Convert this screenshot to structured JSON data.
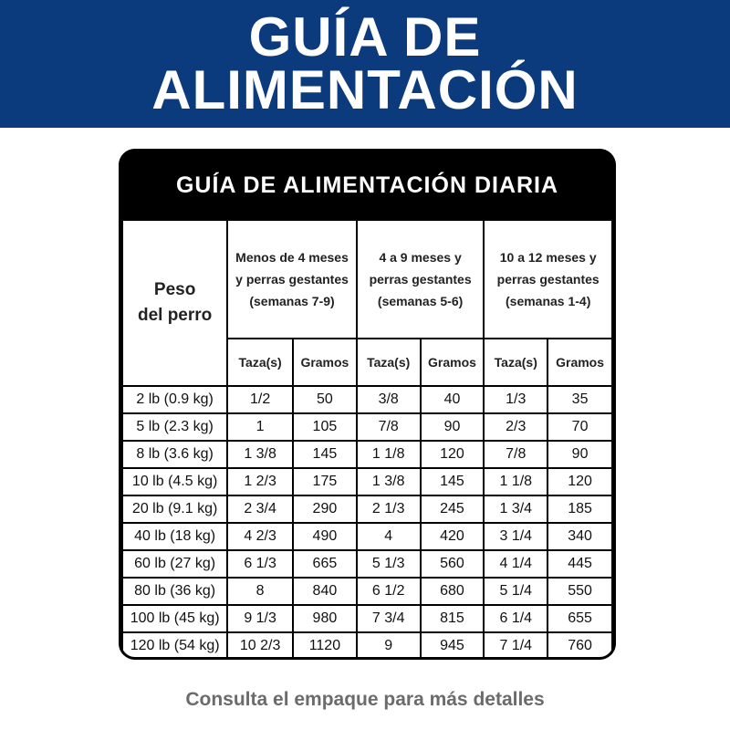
{
  "banner": {
    "line1": "GUÍA DE",
    "line2": "ALIMENTACIÓN",
    "color": "#0c3b7d"
  },
  "table": {
    "title": "GUÍA DE ALIMENTACIÓN DIARIA",
    "weight_header": {
      "line1": "Peso",
      "line2": "del perro"
    },
    "groups": [
      {
        "line1": "Menos de 4 meses",
        "line2": "y perras gestantes",
        "line3": "(semanas 7-9)"
      },
      {
        "line1": "4 a 9 meses y",
        "line2": "perras gestantes",
        "line3": "(semanas 5-6)"
      },
      {
        "line1": "10 a 12 meses y",
        "line2": "perras gestantes",
        "line3": "(semanas 1-4)"
      }
    ],
    "subheaders": [
      "Taza(s)",
      "Gramos",
      "Taza(s)",
      "Gramos",
      "Taza(s)",
      "Gramos"
    ],
    "rows": [
      [
        "2 lb (0.9 kg)",
        "1/2",
        "50",
        "3/8",
        "40",
        "1/3",
        "35"
      ],
      [
        "5 lb (2.3 kg)",
        "1",
        "105",
        "7/8",
        "90",
        "2/3",
        "70"
      ],
      [
        "8 lb (3.6 kg)",
        "1 3/8",
        "145",
        "1 1/8",
        "120",
        "7/8",
        "90"
      ],
      [
        "10 lb (4.5 kg)",
        "1 2/3",
        "175",
        "1 3/8",
        "145",
        "1 1/8",
        "120"
      ],
      [
        "20 lb (9.1 kg)",
        "2 3/4",
        "290",
        "2 1/3",
        "245",
        "1 3/4",
        "185"
      ],
      [
        "40 lb (18 kg)",
        "4 2/3",
        "490",
        "4",
        "420",
        "3 1/4",
        "340"
      ],
      [
        "60 lb (27 kg)",
        "6 1/3",
        "665",
        "5 1/3",
        "560",
        "4 1/4",
        "445"
      ],
      [
        "80 lb (36 kg)",
        "8",
        "840",
        "6 1/2",
        "680",
        "5 1/4",
        "550"
      ],
      [
        "100 lb (45 kg)",
        "9 1/3",
        "980",
        "7 3/4",
        "815",
        "6 1/4",
        "655"
      ],
      [
        "120 lb (54 kg)",
        "10 2/3",
        "1120",
        "9",
        "945",
        "7 1/4",
        "760"
      ]
    ]
  },
  "footer": "Consulta el empaque para más detalles"
}
